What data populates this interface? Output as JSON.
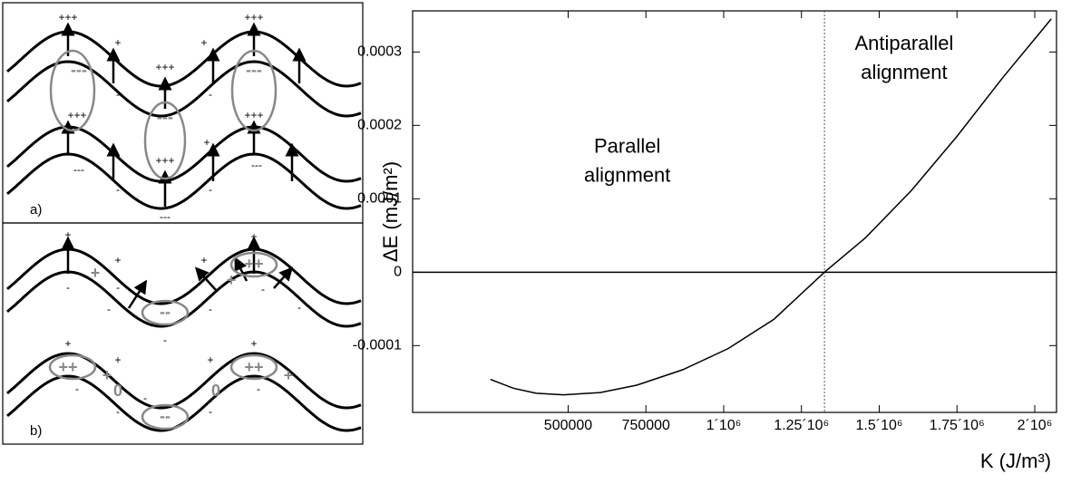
{
  "diagram": {
    "panels": [
      {
        "label": "a)",
        "charges": [
          "+++",
          "+++",
          "+",
          "+",
          "---",
          "+++",
          "---",
          "-",
          "-",
          "+++",
          "---",
          "+++",
          "+",
          "+++",
          "---",
          "---",
          "-",
          "-",
          "---"
        ]
      },
      {
        "label": "b)",
        "charges": [
          "+",
          "+",
          "+",
          "+",
          "+",
          "++",
          "-",
          "-",
          "--",
          "+",
          "-",
          "-",
          "-",
          "-",
          "-",
          "+",
          "+",
          "+",
          "+",
          "++",
          "++",
          "+",
          "0",
          "0",
          "+",
          "-",
          "-",
          "-",
          "-",
          "-",
          "-",
          "--",
          "-"
        ]
      }
    ]
  },
  "chart_data": {
    "type": "line",
    "x_label": "K (J/m³)",
    "y_label": "ΔE (mJ/m²)",
    "x": [
      250000,
      323500,
      397000,
      485000,
      603000,
      720000,
      868000,
      1015000,
      1162000,
      1324000,
      1456000,
      1603000,
      1750000,
      1897000,
      2053000
    ],
    "values": [
      -0.000146,
      -0.000158,
      -0.000165,
      -0.000167,
      -0.000164,
      -0.000154,
      -0.000133,
      -0.000104,
      -6.4e-05,
      0,
      4.7e-05,
      0.000111,
      0.000185,
      0.000265,
      0.000345
    ],
    "color": "#000000",
    "xlim": [
      0,
      2070000
    ],
    "ylim": [
      -0.000191,
      0.000356
    ],
    "xticks": [
      500000,
      750000,
      {
        "value": 1000000,
        "label": "1´10⁶"
      },
      {
        "value": 1250000,
        "label": "1.25´10⁶"
      },
      {
        "value": 1500000,
        "label": "1.5´10⁶"
      },
      {
        "value": 1750000,
        "label": "1.75´10⁶"
      },
      {
        "value": 2000000,
        "label": "2´10⁶"
      }
    ],
    "yticks": [
      -0.0001,
      0,
      0.0001,
      0.0002,
      0.0003
    ],
    "vline": 1324000,
    "zero_line": true,
    "annotations": [
      {
        "x": 690000,
        "y": 0.00017,
        "lines": [
          "Parallel",
          "alignment"
        ]
      },
      {
        "x": 1580000,
        "y": 0.00031,
        "lines": [
          "Antiparallel",
          "alignment"
        ]
      }
    ]
  }
}
